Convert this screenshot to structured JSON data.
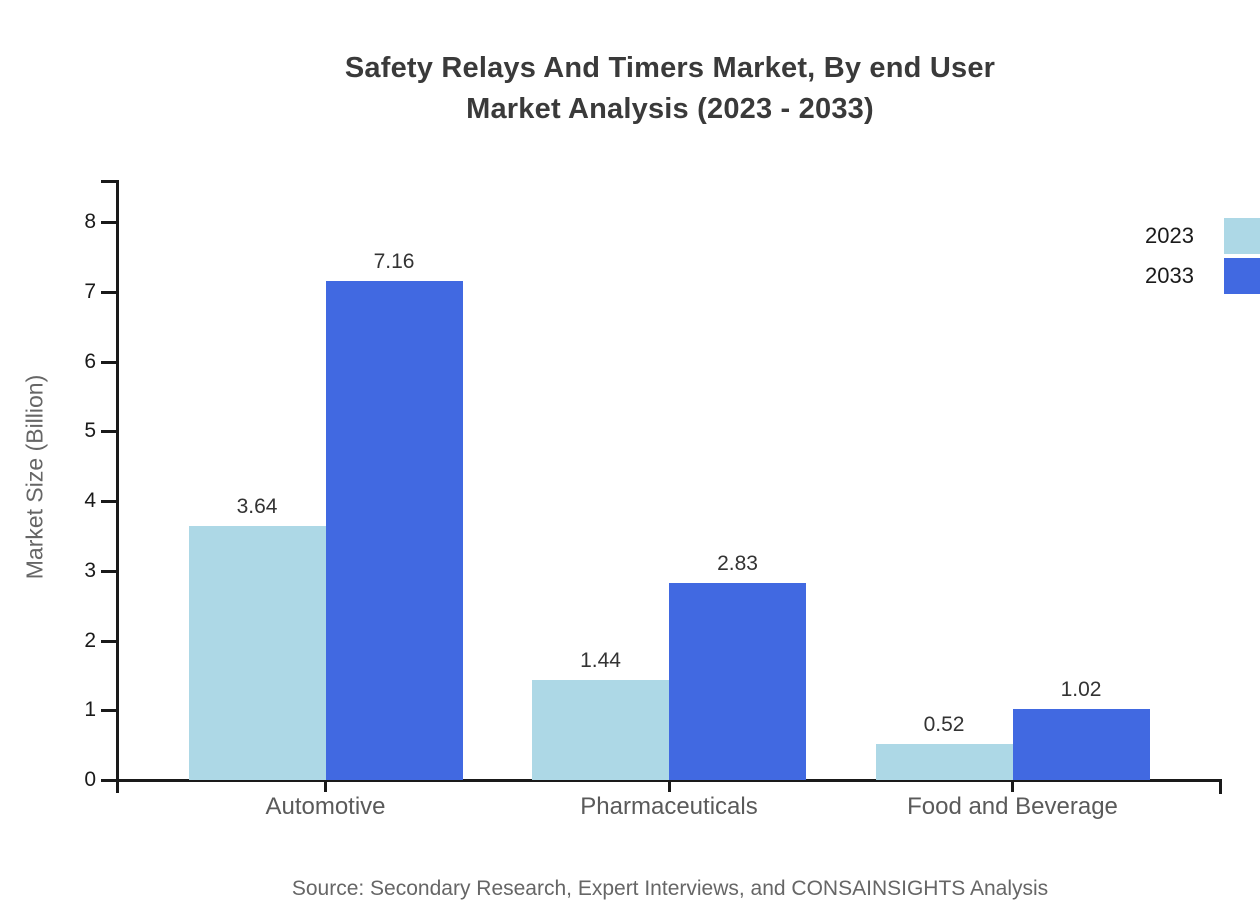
{
  "chart_data": {
    "type": "bar",
    "title": "Safety Relays And Timers Market, By end User Market Analysis (2023 - 2033)",
    "title_lines": [
      "Safety Relays And Timers Market, By end User",
      "Market Analysis (2023 - 2033)"
    ],
    "ylabel": "Market Size (Billion)",
    "xlabel": "",
    "categories": [
      "Automotive",
      "Pharmaceuticals",
      "Food and Beverage"
    ],
    "series": [
      {
        "name": "2023",
        "color": "#ADD8E6",
        "values": [
          3.64,
          1.44,
          0.52
        ]
      },
      {
        "name": "2033",
        "color": "#4169E1",
        "values": [
          7.16,
          2.83,
          1.02
        ]
      }
    ],
    "ylim": [
      0,
      8
    ],
    "yticks": [
      0,
      1,
      2,
      3,
      4,
      5,
      6,
      7,
      8
    ],
    "grid": false,
    "legend_position": "top-right",
    "value_label_decimals": 2,
    "source": "Source: Secondary Research, Expert Interviews, and CONSAINSIGHTS Analysis",
    "colors": {
      "background": "#ffffff",
      "axis": "#1a1a1a",
      "title_text": "#3a3a3a",
      "category_text": "#5a5a5a",
      "ylabel_text": "#666666",
      "value_text": "#333333",
      "tick_text": "#1a1a1a",
      "source_text": "#666666",
      "legend_text": "#1a1a1a"
    }
  }
}
